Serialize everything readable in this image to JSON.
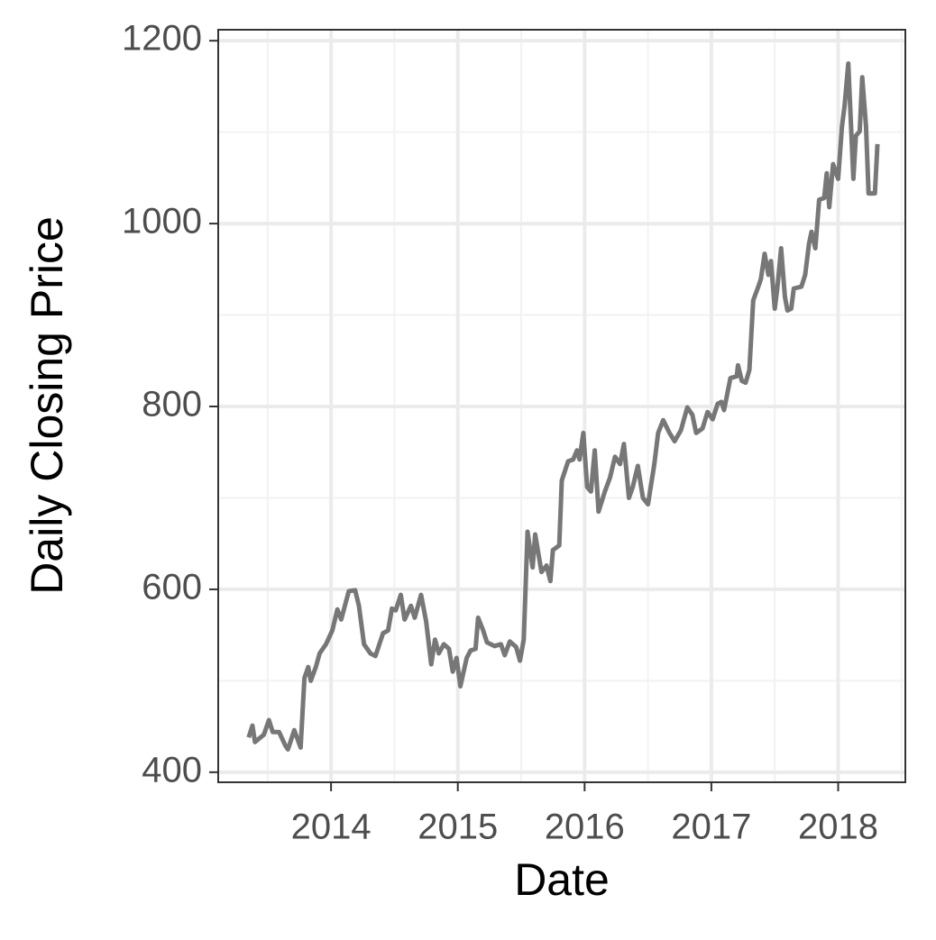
{
  "chart_data": {
    "type": "line",
    "x_label": "Date",
    "y_label": "Daily Closing Price",
    "xlim": [
      2013.11,
      2018.53
    ],
    "xticks": [
      2014,
      2015,
      2016,
      2017,
      2018
    ],
    "ylim": [
      389,
      1212
    ],
    "yticks": [
      400,
      600,
      800,
      1000,
      1200
    ],
    "grid": true,
    "color": "#777777",
    "x": [
      2013.35,
      2013.38,
      2013.4,
      2013.47,
      2013.51,
      2013.54,
      2013.59,
      2013.64,
      2013.66,
      2013.71,
      2013.76,
      2013.79,
      2013.82,
      2013.84,
      2013.88,
      2013.91,
      2013.96,
      2014.01,
      2014.05,
      2014.08,
      2014.14,
      2014.19,
      2014.22,
      2014.26,
      2014.31,
      2014.35,
      2014.41,
      2014.45,
      2014.48,
      2014.51,
      2014.55,
      2014.58,
      2014.63,
      2014.66,
      2014.71,
      2014.75,
      2014.79,
      2014.82,
      2014.85,
      2014.89,
      2014.93,
      2014.96,
      2014.99,
      2015.02,
      2015.07,
      2015.1,
      2015.14,
      2015.16,
      2015.2,
      2015.23,
      2015.29,
      2015.34,
      2015.37,
      2015.41,
      2015.46,
      2015.49,
      2015.52,
      2015.55,
      2015.59,
      2015.61,
      2015.66,
      2015.7,
      2015.73,
      2015.75,
      2015.8,
      2015.82,
      2015.87,
      2015.91,
      2015.94,
      2015.96,
      2015.99,
      2016.02,
      2016.05,
      2016.08,
      2016.11,
      2016.16,
      2016.2,
      2016.24,
      2016.28,
      2016.31,
      2016.35,
      2016.38,
      2016.42,
      2016.46,
      2016.5,
      2016.55,
      2016.58,
      2016.62,
      2016.67,
      2016.71,
      2016.76,
      2016.81,
      2016.85,
      2016.88,
      2016.93,
      2016.97,
      2017.01,
      2017.05,
      2017.08,
      2017.1,
      2017.15,
      2017.2,
      2017.21,
      2017.24,
      2017.27,
      2017.3,
      2017.33,
      2017.37,
      2017.39,
      2017.42,
      2017.45,
      2017.47,
      2017.5,
      2017.52,
      2017.55,
      2017.58,
      2017.6,
      2017.63,
      2017.65,
      2017.71,
      2017.74,
      2017.77,
      2017.79,
      2017.82,
      2017.85,
      2017.89,
      2017.91,
      2017.93,
      2017.96,
      2018.0,
      2018.03,
      2018.05,
      2018.08,
      2018.12,
      2018.14,
      2018.17,
      2018.19,
      2018.22,
      2018.24,
      2018.29,
      2018.31
    ],
    "values": [
      438,
      451,
      433,
      441,
      457,
      444,
      444,
      429,
      425,
      446,
      427,
      503,
      515,
      500,
      515,
      530,
      540,
      555,
      578,
      567,
      598,
      599,
      582,
      540,
      530,
      527,
      552,
      555,
      579,
      577,
      594,
      567,
      582,
      569,
      594,
      565,
      518,
      545,
      530,
      540,
      535,
      510,
      525,
      494,
      525,
      533,
      535,
      569,
      555,
      542,
      538,
      540,
      528,
      543,
      537,
      522,
      545,
      663,
      624,
      660,
      619,
      626,
      609,
      643,
      648,
      719,
      740,
      742,
      752,
      742,
      771,
      712,
      707,
      752,
      685,
      707,
      722,
      745,
      737,
      759,
      700,
      712,
      735,
      700,
      693,
      737,
      771,
      785,
      771,
      762,
      774,
      799,
      791,
      771,
      776,
      794,
      786,
      803,
      805,
      796,
      831,
      833,
      845,
      828,
      826,
      840,
      916,
      931,
      939,
      967,
      944,
      959,
      907,
      929,
      973,
      920,
      905,
      907,
      929,
      931,
      944,
      978,
      991,
      973,
      1026,
      1028,
      1055,
      1018,
      1065,
      1049,
      1106,
      1128,
      1175,
      1049,
      1096,
      1101,
      1160,
      1106,
      1033,
      1033,
      1087
    ]
  }
}
